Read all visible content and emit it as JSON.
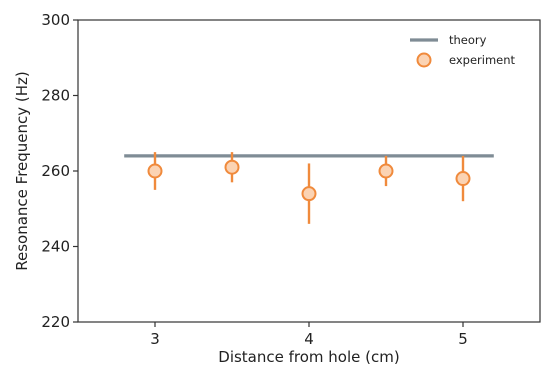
{
  "chart_data": {
    "type": "scatter",
    "title": "",
    "xlabel": "Distance from hole (cm)",
    "ylabel": "Resonance Frequency (Hz)",
    "xlim": [
      2.5,
      5.5
    ],
    "ylim": [
      220,
      300
    ],
    "xticks": [
      3,
      4,
      5
    ],
    "yticks": [
      220,
      240,
      260,
      280,
      300
    ],
    "grid": false,
    "legend_position": "top-right",
    "series": [
      {
        "name": "theory",
        "kind": "line",
        "color": "#7f8c95",
        "x": [
          2.8,
          5.2
        ],
        "y": [
          264,
          264
        ]
      },
      {
        "name": "experiment",
        "kind": "errorbar",
        "color": "#f08a3c",
        "marker_fill": "#fbd3b3",
        "x": [
          3.0,
          3.5,
          4.0,
          4.5,
          5.0
        ],
        "y": [
          260,
          261,
          254,
          260,
          258
        ],
        "y_err": [
          5,
          4,
          8,
          4,
          6
        ]
      }
    ]
  }
}
